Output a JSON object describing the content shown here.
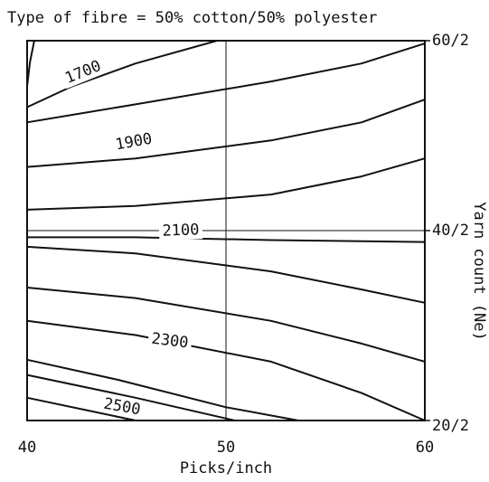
{
  "chart_data": {
    "type": "contour",
    "title": "Type of fibre = 50% cotton/50% polyester",
    "x_label": "Picks/inch",
    "y_label": "Yarn count (Ne)",
    "xlim": [
      40,
      60
    ],
    "xticks": [
      40,
      50,
      60
    ],
    "ylim": [
      20,
      60
    ],
    "yticks": [
      {
        "value": 20,
        "label": "20/2"
      },
      {
        "value": 40,
        "label": "40/2"
      },
      {
        "value": 60,
        "label": "60/2"
      }
    ],
    "grid": true,
    "color": "#111111",
    "contours": [
      {
        "x": [
          40.36,
          40.14,
          40
        ],
        "y": [
          60,
          57.7,
          55.2
        ]
      },
      {
        "label": 1700,
        "x": [
          40,
          42.27,
          45.45,
          49.55
        ],
        "y": [
          53.0,
          55.2,
          57.6,
          60
        ]
      },
      {
        "x": [
          40,
          45.45,
          52.27,
          56.82,
          60
        ],
        "y": [
          51.4,
          53.3,
          55.7,
          57.6,
          59.7
        ]
      },
      {
        "label": 1900,
        "x": [
          40,
          45.45,
          52.27,
          56.82,
          60
        ],
        "y": [
          46.7,
          47.6,
          49.5,
          51.4,
          53.8
        ]
      },
      {
        "x": [
          40,
          45.45,
          52.27,
          56.82,
          60
        ],
        "y": [
          42.2,
          42.6,
          43.8,
          45.7,
          47.6
        ]
      },
      {
        "label": 2100,
        "x": [
          40,
          45.45,
          52.27,
          60
        ],
        "y": [
          39.3,
          39.3,
          39.0,
          38.8
        ]
      },
      {
        "x": [
          40,
          45.45,
          52.27,
          56.82,
          60
        ],
        "y": [
          38.3,
          37.6,
          35.7,
          33.8,
          32.4
        ]
      },
      {
        "x": [
          40,
          45.45,
          52.27,
          56.82,
          60
        ],
        "y": [
          34.0,
          32.9,
          30.5,
          28.1,
          26.2
        ]
      },
      {
        "label": 2300,
        "x": [
          40,
          45.45,
          52.27,
          56.82,
          60
        ],
        "y": [
          30.5,
          29.0,
          26.2,
          22.9,
          20
        ]
      },
      {
        "x": [
          40,
          44.55,
          50,
          53.64
        ],
        "y": [
          26.4,
          24.3,
          21.4,
          20
        ]
      },
      {
        "label": 2500,
        "x": [
          40,
          45.45,
          50.45
        ],
        "y": [
          24.8,
          22.4,
          20
        ]
      },
      {
        "x": [
          40,
          43.18,
          45.45
        ],
        "y": [
          22.4,
          21.0,
          20
        ]
      }
    ]
  }
}
